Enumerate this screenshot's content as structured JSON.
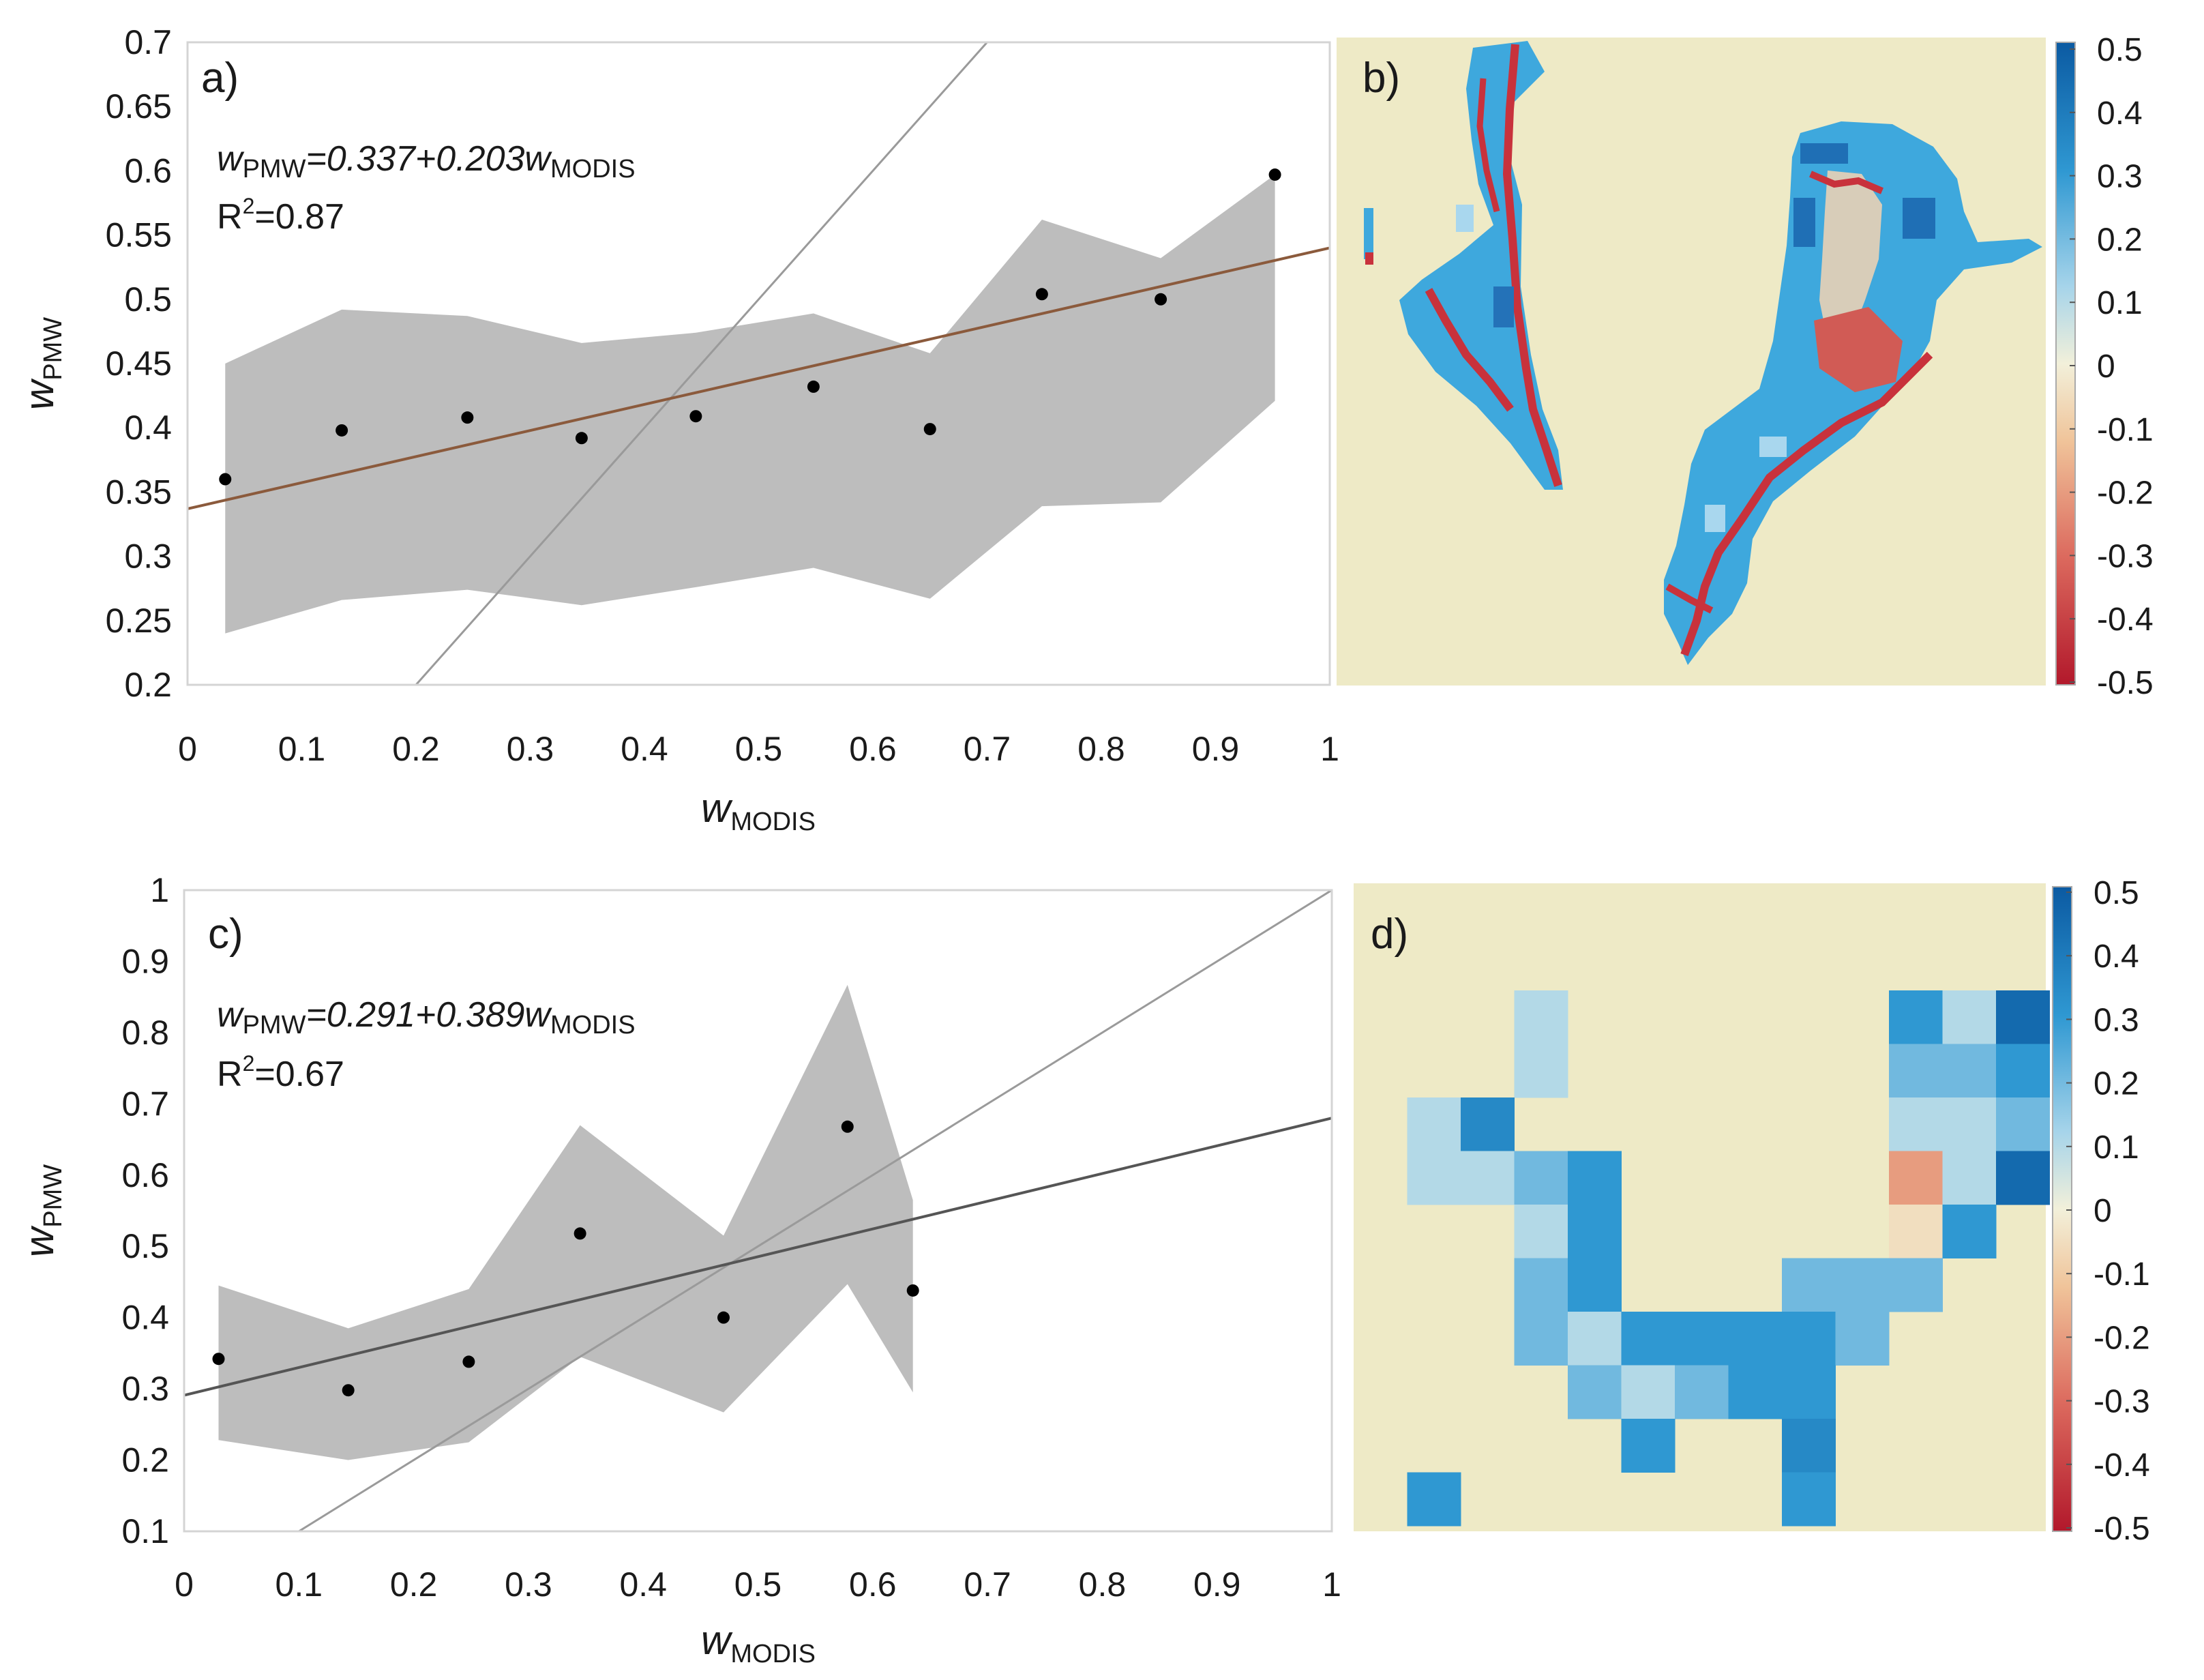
{
  "chart_data": [
    {
      "id": "a",
      "type": "scatter",
      "panel_label": "a)",
      "xlabel": "w",
      "xlabel_sub": "MODIS",
      "ylabel": "w",
      "ylabel_sub": "PMW",
      "xlim": [
        0,
        1
      ],
      "ylim": [
        0.2,
        0.7
      ],
      "xticks": [
        "0",
        "0.1",
        "0.2",
        "0.3",
        "0.4",
        "0.5",
        "0.6",
        "0.7",
        "0.8",
        "0.9",
        "1"
      ],
      "yticks": [
        "0.2",
        "0.25",
        "0.3",
        "0.35",
        "0.4",
        "0.45",
        "0.5",
        "0.55",
        "0.6",
        "0.65",
        "0.7"
      ],
      "equation": {
        "lhs": "w",
        "lhs_sub": "PMW",
        "rhs": "=0.337+0.203w",
        "rhs_sub": "MODIS"
      },
      "r2": {
        "prefix": "R",
        "sup": "2",
        "value": "=0.87"
      },
      "points": [
        {
          "x": 0.033,
          "y": 0.36
        },
        {
          "x": 0.135,
          "y": 0.398
        },
        {
          "x": 0.245,
          "y": 0.408
        },
        {
          "x": 0.345,
          "y": 0.392
        },
        {
          "x": 0.445,
          "y": 0.409
        },
        {
          "x": 0.548,
          "y": 0.432
        },
        {
          "x": 0.65,
          "y": 0.399
        },
        {
          "x": 0.748,
          "y": 0.504
        },
        {
          "x": 0.852,
          "y": 0.5
        },
        {
          "x": 0.952,
          "y": 0.597
        }
      ],
      "band_upper": [
        0.45,
        0.492,
        0.487,
        0.466,
        0.474,
        0.489,
        0.458,
        0.562,
        0.532,
        0.597
      ],
      "band_lower": [
        0.24,
        0.266,
        0.274,
        0.262,
        0.276,
        0.291,
        0.267,
        0.339,
        0.342,
        0.421
      ],
      "fit": {
        "intercept": 0.337,
        "slope": 0.203
      },
      "fit_color": "#8B5A3C",
      "identity_line": true
    },
    {
      "id": "c",
      "type": "scatter",
      "panel_label": "c)",
      "xlabel": "w",
      "xlabel_sub": "MODIS",
      "ylabel": "w",
      "ylabel_sub": "PMW",
      "xlim": [
        0,
        1
      ],
      "ylim": [
        0.1,
        1
      ],
      "xticks": [
        "0",
        "0.1",
        "0.2",
        "0.3",
        "0.4",
        "0.5",
        "0.6",
        "0.7",
        "0.8",
        "0.9",
        "1"
      ],
      "yticks": [
        "0.1",
        "0.2",
        "0.3",
        "0.4",
        "0.5",
        "0.6",
        "0.7",
        "0.8",
        "0.9",
        "1"
      ],
      "equation": {
        "lhs": "w",
        "lhs_sub": "PMW",
        "rhs": "=0.291+0.389w",
        "rhs_sub": "MODIS"
      },
      "r2": {
        "prefix": "R",
        "sup": "2",
        "value": "=0.67"
      },
      "points": [
        {
          "x": 0.03,
          "y": 0.342
        },
        {
          "x": 0.143,
          "y": 0.298
        },
        {
          "x": 0.248,
          "y": 0.338
        },
        {
          "x": 0.345,
          "y": 0.518
        },
        {
          "x": 0.47,
          "y": 0.4
        },
        {
          "x": 0.578,
          "y": 0.668
        },
        {
          "x": 0.635,
          "y": 0.438
        }
      ],
      "band_upper": [
        0.445,
        0.385,
        0.44,
        0.67,
        0.515,
        0.867,
        0.565
      ],
      "band_lower": [
        0.228,
        0.2,
        0.225,
        0.345,
        0.267,
        0.447,
        0.295
      ],
      "fit": {
        "intercept": 0.291,
        "slope": 0.389
      },
      "fit_color": "#555555",
      "identity_line": true
    },
    {
      "id": "b",
      "type": "heatmap",
      "panel_label": "b)",
      "colorbar_ticks": [
        "0.5",
        "0.4",
        "0.3",
        "0.2",
        "0.1",
        "0",
        "-0.1",
        "-0.2",
        "-0.3",
        "-0.4",
        "-0.5"
      ],
      "clim": [
        -0.5,
        0.5
      ],
      "background": "#EEEAC6"
    },
    {
      "id": "d",
      "type": "heatmap",
      "panel_label": "d)",
      "colorbar_ticks": [
        "0.5",
        "0.4",
        "0.3",
        "0.2",
        "0.1",
        "0",
        "-0.1",
        "-0.2",
        "-0.3",
        "-0.4",
        "-0.5"
      ],
      "clim": [
        -0.5,
        0.5
      ],
      "background": "#EEEAC6",
      "grid": [
        "..............",
        "..............",
        "...b......dbf.",
        "...b......ccd.",
        ".be.......bbc.",
        ".bbcd.....gbf.",
        "...bd.....hd..",
        "...cd...ccc...",
        "...cbddddc....",
        "....cbcdd.....",
        ".....d..e.....",
        ".d......d....."
      ],
      "grid_values": {
        "b": 0.1,
        "c": 0.2,
        "d": 0.3,
        "e": 0.35,
        "f": 0.45,
        "g": -0.2,
        "h": -0.05
      }
    }
  ]
}
